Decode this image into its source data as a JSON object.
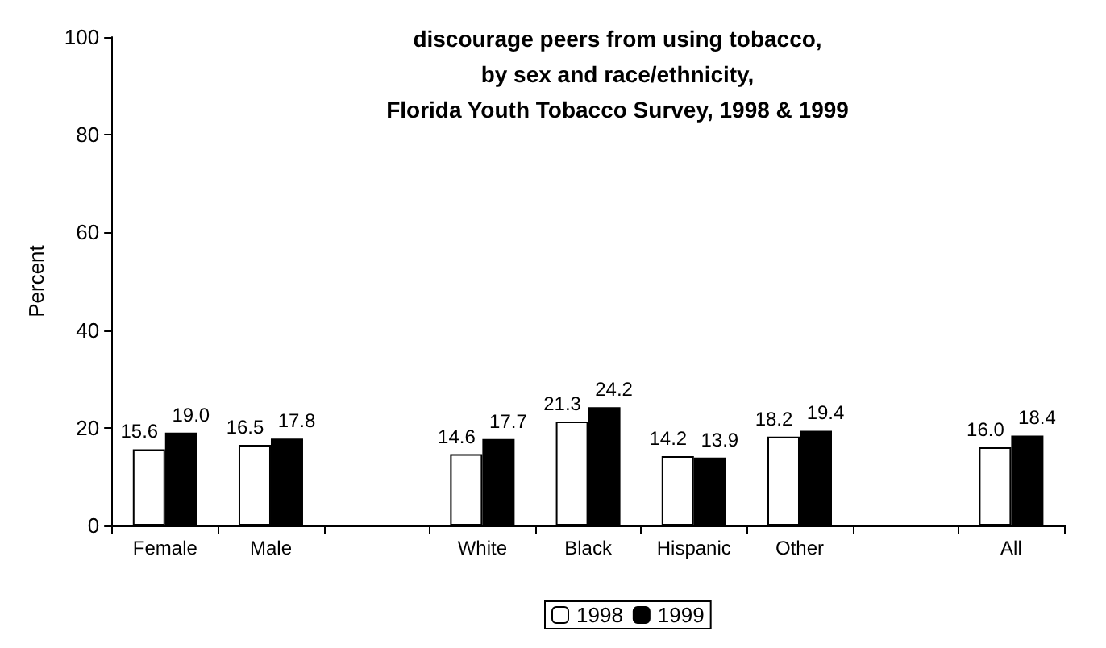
{
  "chart_data": {
    "type": "bar",
    "title": "discourage peers from using tobacco,\nby sex and race/ethnicity,\nFlorida Youth Tobacco Survey, 1998 & 1999",
    "ylabel": "Percent",
    "categories": [
      "Female",
      "Male",
      null,
      "White",
      "Black",
      "Hispanic",
      "Other",
      null,
      "All"
    ],
    "series": [
      {
        "name": "1998",
        "color": "#ffffff",
        "values": [
          15.6,
          16.5,
          null,
          14.6,
          21.3,
          14.2,
          18.2,
          null,
          16.0
        ],
        "value_labels": [
          "15.6",
          "16.5",
          null,
          "14.6",
          "21.3",
          "14.2",
          "18.2",
          null,
          "16.0"
        ]
      },
      {
        "name": "1999",
        "color": "#000000",
        "values": [
          19.0,
          17.8,
          null,
          17.7,
          24.2,
          13.9,
          19.4,
          null,
          18.4
        ],
        "value_labels": [
          "19.0",
          "17.8",
          null,
          "17.7",
          "24.2",
          "13.9",
          "19.4",
          null,
          "18.4"
        ]
      }
    ],
    "ylim": [
      0,
      100
    ],
    "yticks": [
      0,
      20,
      40,
      60,
      80,
      100
    ],
    "grid": false,
    "legend": "bottom"
  }
}
